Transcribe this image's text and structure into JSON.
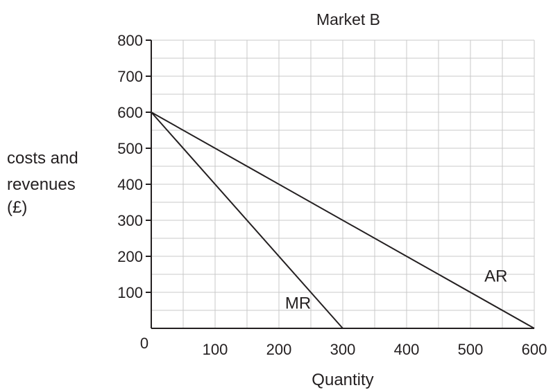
{
  "chart_data": {
    "type": "line",
    "title": "Market B",
    "xlabel": "Quantity",
    "ylabel_lines": [
      "costs and",
      "revenues",
      "(£)"
    ],
    "origin_label": "0",
    "xlim": [
      0,
      600
    ],
    "ylim": [
      0,
      800
    ],
    "x_ticks": [
      100,
      200,
      300,
      400,
      500,
      600
    ],
    "y_ticks": [
      100,
      200,
      300,
      400,
      500,
      600,
      700,
      800
    ],
    "minor_step_x": 50,
    "minor_step_y": 50,
    "grid": true,
    "series": [
      {
        "name": "AR",
        "points": [
          [
            0,
            600
          ],
          [
            600,
            0
          ]
        ],
        "label_at": [
          540,
          130
        ]
      },
      {
        "name": "MR",
        "points": [
          [
            0,
            600
          ],
          [
            300,
            0
          ]
        ],
        "label_at": [
          230,
          55
        ]
      }
    ]
  }
}
